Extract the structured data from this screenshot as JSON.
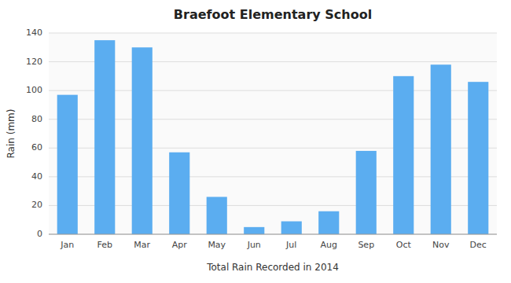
{
  "chart_data": {
    "type": "bar",
    "title": "Braefoot Elementary School",
    "xlabel": "Total Rain Recorded in 2014",
    "ylabel": "Rain (mm)",
    "categories": [
      "Jan",
      "Feb",
      "Mar",
      "Apr",
      "May",
      "Jun",
      "Jul",
      "Aug",
      "Sep",
      "Oct",
      "Nov",
      "Dec"
    ],
    "values": [
      97,
      135,
      130,
      57,
      26,
      5,
      9,
      16,
      58,
      110,
      118,
      106
    ],
    "color": "#5badf0",
    "ylim": [
      0,
      140
    ],
    "yticks": [
      0,
      20,
      40,
      60,
      80,
      100,
      120,
      140
    ],
    "grid": true
  }
}
